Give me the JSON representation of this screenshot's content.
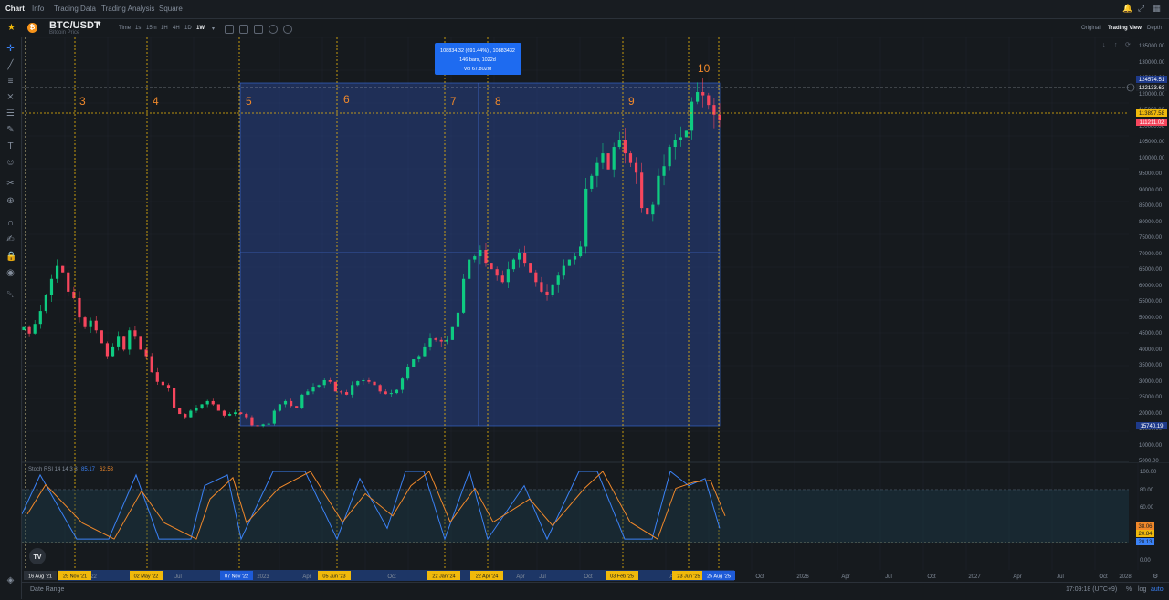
{
  "nav": {
    "tabs": [
      "Chart",
      "Info",
      "Trading Data",
      "Trading Analysis",
      "Square"
    ],
    "icons": [
      "bell-icon",
      "expand-icon",
      "grid-icon"
    ]
  },
  "symbol": {
    "name": "BTC/USDT",
    "sub": "Bitcoin Price",
    "timeframes": [
      "Time",
      "1s",
      "15m",
      "1H",
      "4H",
      "1D",
      "1W"
    ],
    "active_timeframe": "1W"
  },
  "views": [
    "Original",
    "Trading View",
    "Depth"
  ],
  "active_view": "Trading View",
  "price_axis": {
    "labels": [
      "135000.00",
      "130000.00",
      "125000.00",
      "120000.00",
      "115000.00",
      "110000.00",
      "105000.00",
      "100000.00",
      "95000.00",
      "90000.00",
      "85000.00",
      "80000.00",
      "75000.00",
      "70000.00",
      "65000.00",
      "60000.00",
      "55000.00",
      "50000.00",
      "45000.00",
      "40000.00",
      "35000.00",
      "30000.00",
      "25000.00",
      "20000.00",
      "15000.00",
      "10000.00",
      "5000.00"
    ],
    "tags": [
      {
        "text": "124574.51",
        "color": "#1e3a8a"
      },
      {
        "text": "122133.63",
        "color": "#1e2329"
      },
      {
        "text": "113897.58",
        "color": "#f0b90b"
      },
      {
        "text": "111211.02",
        "color": "#f6465d"
      },
      {
        "text": "15740.19",
        "color": "#1e3a8a"
      }
    ]
  },
  "measure_tooltip": {
    "line1": "108834.32 (691.44%) , 10883432",
    "line2": "146 bars, 1022d",
    "line3": "Vol 67.802M"
  },
  "markers": [
    "3",
    "4",
    "5",
    "6",
    "7",
    "8",
    "9",
    "10"
  ],
  "rsi": {
    "title": "Stoch RSI 14 14 3 3",
    "k_value": "85.17",
    "d_value": "62.53",
    "axis_labels": [
      "100.00",
      "80.00",
      "60.00",
      "40.00",
      "0.00"
    ],
    "tags": [
      {
        "text": "38.06",
        "color": "#f0882a"
      },
      {
        "text": "20.84",
        "color": "#f0b90b"
      },
      {
        "text": "20.13",
        "color": "#3b82f6"
      }
    ]
  },
  "time_axis": {
    "labels": [
      "'22",
      "2023",
      "Apr",
      "Jul",
      "Oct",
      "Apr",
      "Jul",
      "Oct",
      "Apr",
      "Oct",
      "2026",
      "Apr",
      "Jul",
      "Oct",
      "2027",
      "Apr",
      "Jul",
      "Oct",
      "2028"
    ],
    "highlights": [
      {
        "text": "16 Aug '21",
        "color": "#2b3139"
      },
      {
        "text": "29 Nov '21",
        "color": "#f0b90b"
      },
      {
        "text": "02 May '22",
        "color": "#f0b90b"
      },
      {
        "text": "07 Nov '22",
        "color": "#1e5bd8"
      },
      {
        "text": "05 Jun '23",
        "color": "#f0b90b"
      },
      {
        "text": "22 Jan '24",
        "color": "#f0b90b"
      },
      {
        "text": "22 Apr '24",
        "color": "#f0b90b"
      },
      {
        "text": "03 Feb '25",
        "color": "#f0b90b"
      },
      {
        "text": "23 Jun '25",
        "color": "#f0b90b"
      },
      {
        "text": "25 Aug '25",
        "color": "#1e5bd8"
      }
    ]
  },
  "footer": {
    "date_range": "Date Range",
    "clock": "17:09:18 (UTC+9)",
    "pct": "%",
    "log": "log",
    "auto": "auto"
  },
  "chart_data": {
    "type": "candlestick",
    "price_range": [
      5000,
      137000
    ],
    "weekly_closes": [
      47000,
      45000,
      48000,
      52000,
      57000,
      62000,
      66000,
      64000,
      58000,
      56000,
      50000,
      47000,
      49000,
      46000,
      42000,
      38000,
      41000,
      44000,
      40000,
      46000,
      44000,
      40000,
      38000,
      33000,
      30000,
      29000,
      28000,
      22000,
      20000,
      19000,
      21000,
      22000,
      23000,
      24000,
      23000,
      21000,
      19500,
      20000,
      20500,
      20000,
      19000,
      16500,
      16300,
      16800,
      17000,
      21000,
      23000,
      24000,
      22500,
      22000,
      26000,
      27000,
      28500,
      29000,
      30500,
      30000,
      27000,
      26800,
      26000,
      29000,
      30200,
      30500,
      30000,
      29000,
      27000,
      26200,
      26500,
      27500,
      31000,
      34500,
      37000,
      38000,
      41000,
      43500,
      43000,
      42500,
      43000,
      47000,
      51500,
      62000,
      68000,
      69000,
      71000,
      67000,
      65000,
      63000,
      61000,
      65000,
      68000,
      70000,
      67000,
      64000,
      61000,
      58000,
      57000,
      60000,
      63000,
      66000,
      68000,
      69000,
      72000,
      90000,
      94000,
      98000,
      101000,
      96000,
      103000,
      105000,
      101000,
      98000,
      95000,
      84000,
      82000,
      85000,
      94000,
      97000,
      103000,
      105000,
      106000,
      108000,
      117000,
      120000,
      119000,
      116000,
      113000,
      111211
    ]
  }
}
